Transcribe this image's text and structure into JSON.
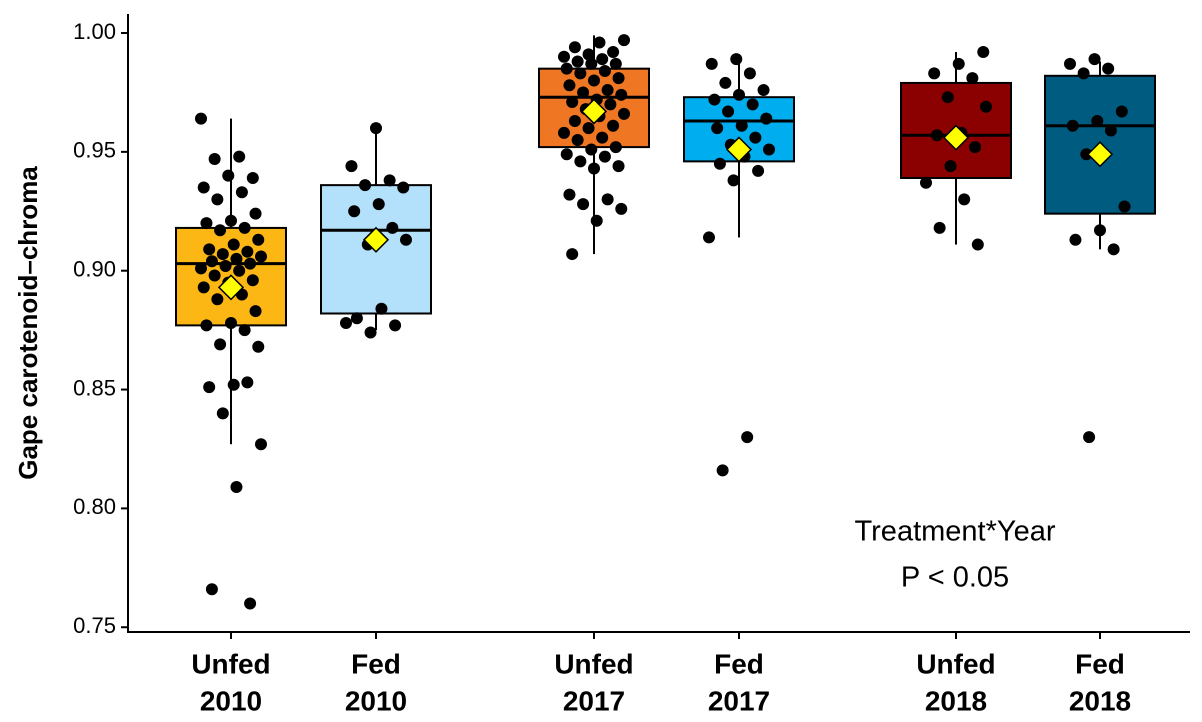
{
  "chart_data": {
    "type": "box",
    "ylabel": "Gape carotenoid–chroma",
    "annotation": [
      "Treatment*Year",
      "P < 0.05"
    ],
    "ylim": [
      0.748,
      1.008
    ],
    "yticks": [
      {
        "value": 0.75,
        "label": "0.75"
      },
      {
        "value": 0.8,
        "label": "0.80"
      },
      {
        "value": 0.85,
        "label": "0.85"
      },
      {
        "value": 0.9,
        "label": "0.90"
      },
      {
        "value": 0.95,
        "label": "0.95"
      },
      {
        "value": 1.0,
        "label": "1.00"
      }
    ],
    "categories": [
      [
        "Unfed",
        "2010"
      ],
      [
        "Fed",
        "2010"
      ],
      [
        "Unfed",
        "2017"
      ],
      [
        "Fed",
        "2017"
      ],
      [
        "Unfed",
        "2018"
      ],
      [
        "Fed",
        "2018"
      ]
    ],
    "boxes": [
      {
        "color": "#fdb714",
        "whisker_low": 0.827,
        "q1": 0.877,
        "median": 0.903,
        "q3": 0.918,
        "whisker_high": 0.964,
        "mean": 0.893,
        "points": [
          0.964,
          0.948,
          0.947,
          0.939,
          0.94,
          0.935,
          0.933,
          0.93,
          0.924,
          0.921,
          0.92,
          0.918,
          0.917,
          0.913,
          0.911,
          0.909,
          0.908,
          0.907,
          0.906,
          0.905,
          0.904,
          0.903,
          0.902,
          0.901,
          0.9,
          0.898,
          0.896,
          0.895,
          0.893,
          0.89,
          0.888,
          0.883,
          0.878,
          0.877,
          0.875,
          0.869,
          0.868,
          0.852,
          0.851,
          0.853,
          0.84,
          0.827,
          0.809,
          0.766,
          0.76
        ]
      },
      {
        "color": "#b3e0fa",
        "whisker_low": 0.875,
        "q1": 0.882,
        "median": 0.917,
        "q3": 0.936,
        "whisker_high": 0.96,
        "mean": 0.913,
        "points": [
          0.96,
          0.944,
          0.938,
          0.936,
          0.935,
          0.928,
          0.925,
          0.918,
          0.911,
          0.913,
          0.884,
          0.88,
          0.877,
          0.874,
          0.878
        ]
      },
      {
        "color": "#ef7622",
        "whisker_low": 0.907,
        "q1": 0.952,
        "median": 0.973,
        "q3": 0.985,
        "whisker_high": 0.999,
        "mean": 0.967,
        "points": [
          0.997,
          0.996,
          0.994,
          0.992,
          0.991,
          0.99,
          0.989,
          0.988,
          0.987,
          0.987,
          0.985,
          0.984,
          0.983,
          0.981,
          0.98,
          0.978,
          0.976,
          0.975,
          0.974,
          0.972,
          0.971,
          0.97,
          0.968,
          0.966,
          0.965,
          0.963,
          0.961,
          0.96,
          0.958,
          0.956,
          0.955,
          0.952,
          0.951,
          0.949,
          0.948,
          0.946,
          0.944,
          0.943,
          0.932,
          0.93,
          0.928,
          0.926,
          0.921,
          0.907
        ]
      },
      {
        "color": "#00aeef",
        "whisker_low": 0.914,
        "q1": 0.946,
        "median": 0.963,
        "q3": 0.973,
        "whisker_high": 0.989,
        "mean": 0.951,
        "points": [
          0.989,
          0.987,
          0.983,
          0.979,
          0.976,
          0.974,
          0.972,
          0.97,
          0.967,
          0.964,
          0.961,
          0.96,
          0.956,
          0.953,
          0.951,
          0.948,
          0.945,
          0.942,
          0.938,
          0.914,
          0.83,
          0.816
        ]
      },
      {
        "color": "#8b0000",
        "whisker_low": 0.911,
        "q1": 0.939,
        "median": 0.957,
        "q3": 0.979,
        "whisker_high": 0.992,
        "mean": 0.956,
        "points": [
          0.992,
          0.987,
          0.983,
          0.981,
          0.973,
          0.969,
          0.958,
          0.957,
          0.952,
          0.944,
          0.937,
          0.93,
          0.918,
          0.911
        ]
      },
      {
        "color": "#005b80",
        "whisker_low": 0.909,
        "q1": 0.924,
        "median": 0.961,
        "q3": 0.982,
        "whisker_high": 0.988,
        "mean": 0.949,
        "points": [
          0.989,
          0.987,
          0.985,
          0.983,
          0.967,
          0.963,
          0.961,
          0.959,
          0.949,
          0.927,
          0.917,
          0.913,
          0.909,
          0.83
        ]
      }
    ]
  }
}
